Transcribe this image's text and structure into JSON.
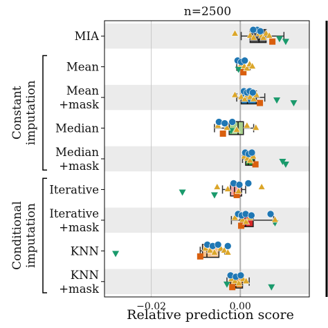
{
  "chart_data": {
    "type": "box",
    "title": "n=2500",
    "xlabel": "Relative prediction score",
    "xlim": [
      -0.0305,
      0.0155
    ],
    "xticks": [
      {
        "value": -0.02,
        "label": "−0.02"
      },
      {
        "value": 0.0,
        "label": "0.00"
      }
    ],
    "group_labels": [
      {
        "label_lines": [
          "Constant",
          "imputation"
        ],
        "span": [
          "Mean",
          "Median +mask"
        ]
      },
      {
        "label_lines": [
          "Conditional",
          "imputation"
        ],
        "span": [
          "Iterative",
          "KNN +mask"
        ]
      }
    ],
    "categories": [
      {
        "label_lines": [
          "MIA"
        ],
        "color": "#4d4d4d",
        "box": {
          "q1": 0.0022,
          "median": 0.0042,
          "q3": 0.0058,
          "whisker_low": 0.0002,
          "whisker_high": 0.0098
        },
        "circles": [
          0.0038,
          0.0045,
          0.0029
        ],
        "triangles": [
          -0.0012,
          0.0022,
          0.003,
          0.0042,
          0.0048,
          0.0052,
          0.0058,
          0.0065
        ],
        "down_triangles": [
          0.0088,
          0.0102
        ],
        "squares": [
          0.0072
        ]
      },
      {
        "label_lines": [
          "Mean"
        ],
        "color": "#3a3a3a",
        "box": {
          "q1": 0.0002,
          "median": 0.0004,
          "q3": 0.0006,
          "whisker_low": -0.0008,
          "whisker_high": 0.0022
        },
        "circles": [
          -0.0006,
          0.0002,
          0.001
        ],
        "triangles": [
          0.0002,
          0.0009,
          0.0015,
          0.0021,
          0.0027
        ],
        "down_triangles": [
          -0.0004
        ],
        "squares": [
          0.0007
        ]
      },
      {
        "label_lines": [
          "Mean",
          "+mask"
        ],
        "color": "#1f77b4",
        "box": {
          "q1": 0.0002,
          "median": 0.0016,
          "q3": 0.0036,
          "whisker_low": -0.0008,
          "whisker_high": 0.0055
        },
        "circles": [
          0.0008,
          0.0015,
          0.0021,
          0.0028
        ],
        "triangles": [
          -0.0012,
          0.0002,
          0.001,
          0.0016,
          0.0022,
          0.003,
          0.0036
        ],
        "down_triangles": [
          0.0082,
          0.012
        ],
        "squares": [
          0.0044
        ]
      },
      {
        "label_lines": [
          "Median"
        ],
        "color": "#a8d08d",
        "box": {
          "q1": -0.0025,
          "median": -0.0005,
          "q3": 0.0007,
          "whisker_low": -0.0058,
          "whisker_high": 0.003
        },
        "circles": [
          -0.0048,
          -0.0035,
          -0.0018
        ],
        "triangles": [
          -0.005,
          -0.003,
          -0.0008,
          0.0015,
          0.0035
        ],
        "down_triangles": [
          -0.0021
        ],
        "squares": [
          -0.0039
        ]
      },
      {
        "label_lines": [
          "Median",
          "+mask"
        ],
        "color": "#2ca02c",
        "box": {
          "q1": 0.0012,
          "median": 0.0018,
          "q3": 0.003,
          "whisker_low": 0.0005,
          "whisker_high": 0.0032
        },
        "circles": [
          0.0011,
          0.0019,
          0.0026
        ],
        "triangles": [
          0.0009,
          0.0016,
          0.0022,
          0.0029
        ],
        "down_triangles": [
          0.0095,
          0.0102
        ],
        "squares": [
          0.0034
        ]
      },
      {
        "label_lines": [
          "Iterative"
        ],
        "color": "#f4a6a6",
        "box": {
          "q1": -0.0022,
          "median": -0.0013,
          "q3": 0.0003,
          "whisker_low": -0.004,
          "whisker_high": 0.0012
        },
        "circles": [
          -0.0015,
          -0.0002,
          0.0018
        ],
        "triangles": [
          -0.0052,
          -0.0028,
          -0.0004,
          0.0048
        ],
        "down_triangles": [
          -0.013,
          -0.0058
        ],
        "squares": [
          -0.0008
        ]
      },
      {
        "label_lines": [
          "Iterative",
          "+mask"
        ],
        "color": "#d62728",
        "box": {
          "q1": 0.0,
          "median": 0.0012,
          "q3": 0.0029,
          "whisker_low": -0.002,
          "whisker_high": 0.0075
        },
        "circles": [
          -0.0005,
          0.0003,
          0.0012,
          0.0025,
          0.0068
        ],
        "triangles": [
          -0.0012,
          0.0005,
          0.0013,
          0.0022,
          0.0078
        ],
        "down_triangles": [
          0.0078
        ],
        "squares": [
          0.0002
        ]
      },
      {
        "label_lines": [
          "KNN"
        ],
        "color": "#f5c18c",
        "box": {
          "q1": -0.0085,
          "median": -0.0075,
          "q3": -0.0048,
          "whisker_low": -0.009,
          "whisker_high": -0.0035
        },
        "circles": [
          -0.0074,
          -0.0062,
          -0.005,
          -0.0028
        ],
        "triangles": [
          -0.0078,
          -0.0068,
          -0.0058,
          -0.0044,
          -0.0036,
          -0.0028
        ],
        "down_triangles": [
          -0.028
        ],
        "squares": [
          -0.009
        ]
      },
      {
        "label_lines": [
          "KNN",
          "+mask"
        ],
        "color": "#e8892f",
        "box": {
          "q1": -0.0022,
          "median": -0.001,
          "q3": 0.0005,
          "whisker_low": -0.003,
          "whisker_high": 0.002
        },
        "circles": [
          -0.0022,
          -0.001,
          0.0001
        ],
        "triangles": [
          -0.002,
          -0.0012,
          -0.0003,
          0.0006,
          0.0013
        ],
        "down_triangles": [
          -0.003,
          0.007
        ],
        "squares": [
          -0.0018
        ]
      }
    ],
    "marker_colors": {
      "circle": "#1f77b4",
      "triangle": "#dba62a",
      "down_triangle": "#1a9a6c",
      "square": "#d95f0e"
    },
    "band_color": "#ebebeb",
    "grid": "vertical"
  }
}
